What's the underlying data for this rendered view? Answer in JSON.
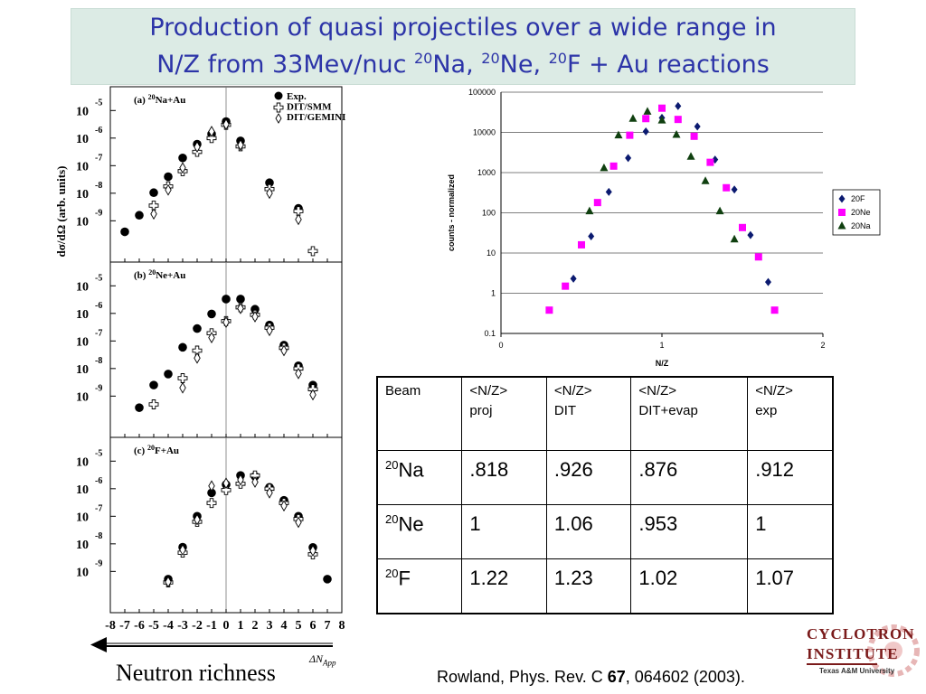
{
  "title": {
    "line1": "Production of quasi projectiles over a wide range in",
    "line2_prefix": "N/Z from 33Mev/nuc ",
    "line2_parts": [
      {
        "sup": "20",
        "text": "Na, "
      },
      {
        "sup": "20",
        "text": "Ne, "
      },
      {
        "sup": "20",
        "text": "F + Au reactions"
      }
    ]
  },
  "chart_data": [
    {
      "type": "scatter",
      "log_y": true,
      "ylabel": "dσ/dΩ (arb. units)",
      "x_tick_labels": [
        "-8",
        "-7",
        "-6",
        "-5",
        "-4",
        "-3",
        "-2",
        "-1",
        "0",
        "1",
        "2",
        "3",
        "4",
        "5",
        "6",
        "7",
        "8"
      ],
      "y_tick_base": "10",
      "legend_labels": [
        "Exp.",
        "DIT/SMM",
        "DIT/GEMINI"
      ],
      "panels": [
        {
          "label": "(a) ",
          "label_sup": "20",
          "label_rest": "Na+Au",
          "y_ticks": [
            -5,
            -6,
            -7,
            -8,
            -9
          ],
          "series": [
            {
              "name": "Exp.",
              "points": [
                [
                  -7,
                  -9.4
                ],
                [
                  -6,
                  -8.8
                ],
                [
                  -5,
                  -7.98
                ],
                [
                  -4,
                  -7.4
                ],
                [
                  -3,
                  -6.72
                ],
                [
                  -2,
                  -6.22
                ],
                [
                  -1,
                  -5.85
                ],
                [
                  0,
                  -5.4
                ],
                [
                  1,
                  -6.1
                ],
                [
                  3,
                  -7.62
                ],
                [
                  5,
                  -8.55
                ]
              ]
            },
            {
              "name": "DIT/SMM",
              "points": [
                [
                  -5,
                  -8.45
                ],
                [
                  -4,
                  -7.75
                ],
                [
                  -3,
                  -7.2
                ],
                [
                  -2,
                  -6.5
                ],
                [
                  -1,
                  -6.0
                ],
                [
                  0,
                  -5.52
                ],
                [
                  1,
                  -6.3
                ],
                [
                  3,
                  -7.85
                ],
                [
                  5,
                  -8.65
                ],
                [
                  6,
                  -10.1
                ]
              ]
            },
            {
              "name": "DIT/GEMINI",
              "points": [
                [
                  -5,
                  -8.75
                ],
                [
                  -4,
                  -7.88
                ],
                [
                  -3,
                  -7.08
                ],
                [
                  -2,
                  -6.32
                ],
                [
                  -1,
                  -5.76
                ],
                [
                  0,
                  -5.5
                ],
                [
                  1,
                  -6.25
                ],
                [
                  3,
                  -8.0
                ],
                [
                  5,
                  -8.95
                ]
              ]
            }
          ]
        },
        {
          "label": "(b) ",
          "label_sup": "20",
          "label_rest": "Ne+Au",
          "y_ticks": [
            -5,
            -6,
            -7,
            -8,
            -9
          ],
          "series": [
            {
              "name": "Exp.",
              "points": [
                [
                  -6,
                  -9.42
                ],
                [
                  -5,
                  -8.6
                ],
                [
                  -4,
                  -8.2
                ],
                [
                  -3,
                  -7.23
                ],
                [
                  -2,
                  -6.55
                ],
                [
                  -1,
                  -6.02
                ],
                [
                  0,
                  -5.48
                ],
                [
                  1,
                  -5.48
                ],
                [
                  2,
                  -5.85
                ],
                [
                  3,
                  -6.42
                ],
                [
                  4,
                  -7.15
                ],
                [
                  5,
                  -7.9
                ],
                [
                  6,
                  -8.6
                ]
              ]
            },
            {
              "name": "DIT/SMM",
              "points": [
                [
                  -5,
                  -9.3
                ],
                [
                  -3,
                  -8.35
                ],
                [
                  -2,
                  -7.35
                ],
                [
                  -1,
                  -6.72
                ],
                [
                  0,
                  -6.28
                ],
                [
                  1,
                  -5.78
                ],
                [
                  2,
                  -6.05
                ],
                [
                  3,
                  -6.52
                ],
                [
                  4,
                  -7.25
                ],
                [
                  5,
                  -8.0
                ],
                [
                  6,
                  -8.75
                ]
              ]
            },
            {
              "name": "DIT/GEMINI",
              "points": [
                [
                  -3,
                  -8.7
                ],
                [
                  -2,
                  -7.62
                ],
                [
                  -1,
                  -6.88
                ],
                [
                  0,
                  -6.32
                ],
                [
                  1,
                  -5.82
                ],
                [
                  2,
                  -6.12
                ],
                [
                  3,
                  -6.62
                ],
                [
                  4,
                  -7.35
                ],
                [
                  5,
                  -8.18
                ],
                [
                  6,
                  -8.95
                ]
              ]
            }
          ]
        },
        {
          "label": "(c) ",
          "label_sup": "20",
          "label_rest": "F+Au",
          "y_ticks": [
            -5,
            -6,
            -7,
            -8,
            -9
          ],
          "series": [
            {
              "name": "Exp.",
              "points": [
                [
                  -4,
                  -9.28
                ],
                [
                  -3,
                  -8.12
                ],
                [
                  -2,
                  -7.0
                ],
                [
                  -1,
                  -6.15
                ],
                [
                  0,
                  -5.85
                ],
                [
                  1,
                  -5.52
                ],
                [
                  2,
                  -5.55
                ],
                [
                  3,
                  -5.95
                ],
                [
                  4,
                  -6.42
                ],
                [
                  5,
                  -7.0
                ],
                [
                  6,
                  -8.13
                ],
                [
                  7,
                  -9.28
                ]
              ]
            },
            {
              "name": "DIT/SMM",
              "points": [
                [
                  -4,
                  -9.4
                ],
                [
                  -3,
                  -8.32
                ],
                [
                  -2,
                  -7.2
                ],
                [
                  -1,
                  -6.52
                ],
                [
                  0,
                  -6.05
                ],
                [
                  1,
                  -5.82
                ],
                [
                  2,
                  -5.52
                ],
                [
                  3,
                  -6.0
                ],
                [
                  4,
                  -6.52
                ],
                [
                  5,
                  -7.1
                ],
                [
                  6,
                  -8.38
                ]
              ]
            },
            {
              "name": "DIT/GEMINI",
              "points": [
                [
                  -4,
                  -9.38
                ],
                [
                  -3,
                  -8.22
                ],
                [
                  -2,
                  -7.12
                ],
                [
                  -1,
                  -5.9
                ],
                [
                  0,
                  -5.8
                ],
                [
                  1,
                  -5.68
                ],
                [
                  2,
                  -5.76
                ],
                [
                  3,
                  -6.15
                ],
                [
                  4,
                  -6.62
                ],
                [
                  5,
                  -7.22
                ],
                [
                  6,
                  -8.25
                ]
              ]
            }
          ]
        }
      ]
    },
    {
      "type": "scatter",
      "log_y": true,
      "xlabel": "N/Z",
      "ylabel": "counts - normalized",
      "xlim": [
        0,
        2
      ],
      "ylim": [
        0.1,
        100000
      ],
      "x_ticks": [
        0,
        1,
        2
      ],
      "y_tick_labels": [
        "100000",
        "10000",
        "1000",
        "100",
        "10",
        "1",
        "0.1"
      ],
      "grid": "horizontal",
      "legend_placement": "right",
      "series": [
        {
          "name": "20F",
          "color": "#0b1a70",
          "marker": "diamond",
          "points": [
            [
              0.45,
              2.3
            ],
            [
              0.56,
              26
            ],
            [
              0.67,
              330
            ],
            [
              0.79,
              2300
            ],
            [
              0.9,
              10500
            ],
            [
              1.0,
              23000
            ],
            [
              1.1,
              45000
            ],
            [
              1.22,
              14000
            ],
            [
              1.33,
              2100
            ],
            [
              1.45,
              380
            ],
            [
              1.55,
              28
            ],
            [
              1.66,
              1.9
            ]
          ]
        },
        {
          "name": "20Ne",
          "color": "#ff00ff",
          "marker": "square",
          "points": [
            [
              0.3,
              0.38
            ],
            [
              0.4,
              1.5
            ],
            [
              0.5,
              16
            ],
            [
              0.6,
              180
            ],
            [
              0.7,
              1450
            ],
            [
              0.8,
              8500
            ],
            [
              0.9,
              22000
            ],
            [
              1.0,
              40000
            ],
            [
              1.1,
              21000
            ],
            [
              1.2,
              8000
            ],
            [
              1.3,
              1800
            ],
            [
              1.4,
              420
            ],
            [
              1.5,
              43
            ],
            [
              1.6,
              8
            ],
            [
              1.7,
              0.38
            ]
          ]
        },
        {
          "name": "20Na",
          "color": "#104010",
          "marker": "triangle",
          "points": [
            [
              0.55,
              110
            ],
            [
              0.64,
              1300
            ],
            [
              0.73,
              8500
            ],
            [
              0.82,
              22000
            ],
            [
              0.91,
              33000
            ],
            [
              1.0,
              20000
            ],
            [
              1.09,
              8800
            ],
            [
              1.18,
              2500
            ],
            [
              1.27,
              620
            ],
            [
              1.36,
              110
            ],
            [
              1.45,
              22
            ]
          ]
        }
      ]
    }
  ],
  "table": {
    "headers": [
      [
        "Beam",
        ""
      ],
      [
        "<N/Z>",
        "proj"
      ],
      [
        "<N/Z>",
        "DIT"
      ],
      [
        "<N/Z>",
        "DIT+evap"
      ],
      [
        "<N/Z>",
        "exp"
      ]
    ],
    "rows": [
      {
        "sup": "20",
        "beam": "Na",
        "values": [
          ".818",
          ".926",
          ".876",
          ".912"
        ]
      },
      {
        "sup": "20",
        "beam": "Ne",
        "values": [
          "1",
          "1.06",
          ".953",
          "1"
        ]
      },
      {
        "sup": "20",
        "beam": "F",
        "values": [
          "1.22",
          "1.23",
          "1.02",
          "1.07"
        ]
      }
    ]
  },
  "neutron_label": "Neutron richness",
  "delta_label": "ΔN",
  "delta_sub": "App",
  "citation": {
    "prefix": "Rowland, Phys. Rev. C ",
    "volume": "67",
    "suffix": ", 064602 (2003)."
  },
  "logo": {
    "line1": "CYCLOTRON",
    "line2": "INSTITUTE",
    "line3": "Texas A&M University"
  }
}
